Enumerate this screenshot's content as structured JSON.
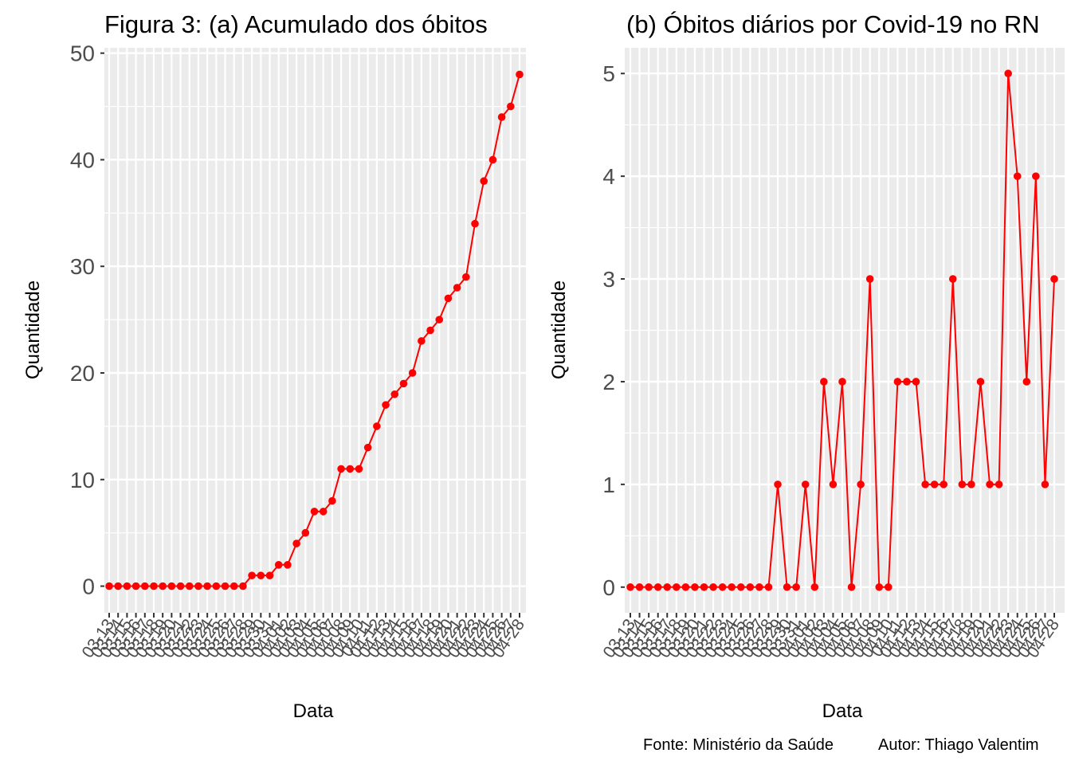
{
  "figure": {
    "caption_source": "Fonte: Ministério da Saúde",
    "caption_author": "Autor: Thiago Valentim",
    "line_color": "#ff0000",
    "panel_bg": "#ebebeb",
    "grid_color": "#ffffff"
  },
  "chart_data": [
    {
      "type": "line",
      "title": "Figura 3: (a) Acumulado dos óbitos",
      "xlabel": "Data",
      "ylabel": "Quantidade",
      "ylim": [
        -2.5,
        50.5
      ],
      "yticks": [
        0,
        10,
        20,
        30,
        40,
        50
      ],
      "grid": true,
      "x": [
        "03-13",
        "03-14",
        "03-15",
        "03-16",
        "03-17",
        "03-18",
        "03-19",
        "03-20",
        "03-21",
        "03-22",
        "03-23",
        "03-24",
        "03-25",
        "03-26",
        "03-27",
        "03-28",
        "03-29",
        "03-30",
        "03-31",
        "04-01",
        "04-02",
        "04-03",
        "04-04",
        "04-05",
        "04-06",
        "04-07",
        "04-08",
        "04-09",
        "04-10",
        "04-11",
        "04-12",
        "04-13",
        "04-14",
        "04-15",
        "04-16",
        "04-17",
        "04-18",
        "04-19",
        "04-20",
        "04-21",
        "04-22",
        "04-23",
        "04-24",
        "04-25",
        "04-26",
        "04-27",
        "04-28"
      ],
      "series": [
        {
          "values": [
            0,
            0,
            0,
            0,
            0,
            0,
            0,
            0,
            0,
            0,
            0,
            0,
            0,
            0,
            0,
            0,
            1,
            1,
            1,
            2,
            2,
            4,
            5,
            7,
            7,
            8,
            11,
            11,
            11,
            13,
            15,
            17,
            18,
            19,
            20,
            23,
            24,
            25,
            27,
            28,
            29,
            34,
            38,
            40,
            44,
            45,
            48
          ]
        }
      ]
    },
    {
      "type": "line",
      "title": "(b) Óbitos diários por Covid-19 no RN",
      "xlabel": "Data",
      "ylabel": "Quantidade",
      "ylim": [
        -0.25,
        5.25
      ],
      "yticks": [
        0,
        1,
        2,
        3,
        4,
        5
      ],
      "grid": true,
      "x": [
        "03-13",
        "03-14",
        "03-15",
        "03-16",
        "03-17",
        "03-18",
        "03-19",
        "03-20",
        "03-21",
        "03-22",
        "03-23",
        "03-24",
        "03-25",
        "03-26",
        "03-27",
        "03-28",
        "03-29",
        "03-30",
        "03-31",
        "04-01",
        "04-02",
        "04-03",
        "04-04",
        "04-05",
        "04-06",
        "04-07",
        "04-08",
        "04-09",
        "04-10",
        "04-11",
        "04-12",
        "04-13",
        "04-14",
        "04-15",
        "04-16",
        "04-17",
        "04-18",
        "04-19",
        "04-20",
        "04-21",
        "04-22",
        "04-23",
        "04-24",
        "04-25",
        "04-26",
        "04-27",
        "04-28"
      ],
      "series": [
        {
          "values": [
            0,
            0,
            0,
            0,
            0,
            0,
            0,
            0,
            0,
            0,
            0,
            0,
            0,
            0,
            0,
            0,
            1,
            0,
            0,
            1,
            0,
            2,
            1,
            2,
            0,
            1,
            3,
            0,
            0,
            2,
            2,
            2,
            1,
            1,
            1,
            3,
            1,
            1,
            2,
            1,
            1,
            5,
            4,
            2,
            4,
            1,
            3
          ]
        }
      ]
    }
  ]
}
